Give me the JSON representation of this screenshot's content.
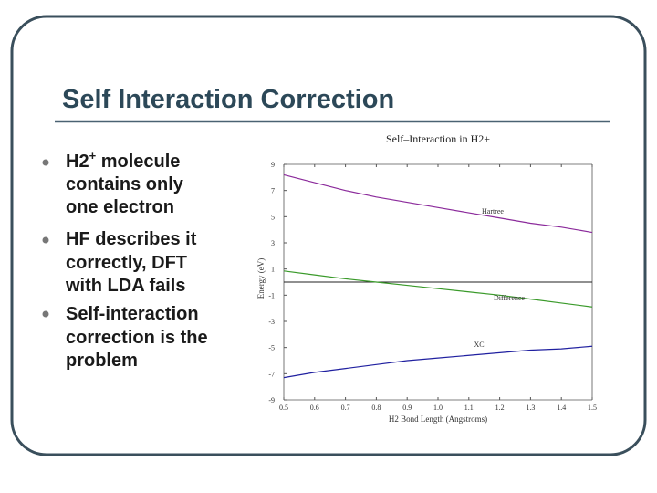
{
  "slide": {
    "title": "Self Interaction Correction",
    "bullets": [
      {
        "head": "H2",
        "sup": "+",
        "tail": " molecule",
        "lines": [
          "contains only",
          "one electron"
        ]
      },
      {
        "lines": [
          "HF describes it",
          "correctly, DFT",
          "with LDA fails"
        ]
      },
      {
        "lines": [
          "Self-interaction",
          "correction is the",
          "problem"
        ]
      }
    ]
  },
  "chart_data": {
    "type": "line",
    "title": "Self–Interaction in H2+",
    "x_label": "H2 Bond Length (Angstroms)",
    "y_label": "Energy (eV)",
    "x": [
      0.5,
      0.6,
      0.7,
      0.8,
      0.9,
      1.0,
      1.1,
      1.2,
      1.3,
      1.4,
      1.5
    ],
    "series": [
      {
        "name": "Hartree",
        "color": "#8b2a9b",
        "values": [
          8.2,
          7.6,
          7.0,
          6.5,
          6.1,
          5.7,
          5.3,
          4.9,
          4.5,
          4.2,
          3.8
        ]
      },
      {
        "name": "Difference",
        "color": "#3a9a2a",
        "values": [
          0.85,
          0.55,
          0.25,
          0.0,
          -0.25,
          -0.5,
          -0.75,
          -1.0,
          -1.3,
          -1.6,
          -1.9
        ]
      },
      {
        "name": "XC",
        "color": "#2020a0",
        "values": [
          -7.3,
          -6.9,
          -6.6,
          -6.3,
          -6.0,
          -5.8,
          -5.6,
          -5.4,
          -5.2,
          -5.1,
          -4.9
        ]
      }
    ],
    "xlim": [
      0.5,
      1.5
    ],
    "xticks": [
      0.5,
      0.6,
      0.7,
      0.8,
      0.9,
      {
        "value": 1,
        "label": "1.0"
      },
      1.1,
      1.2,
      1.3,
      1.4,
      1.5
    ],
    "ylim": [
      -9,
      9
    ],
    "yticks": [
      9,
      7,
      5,
      3,
      1,
      -1,
      -3,
      -5,
      -7,
      -9
    ]
  }
}
